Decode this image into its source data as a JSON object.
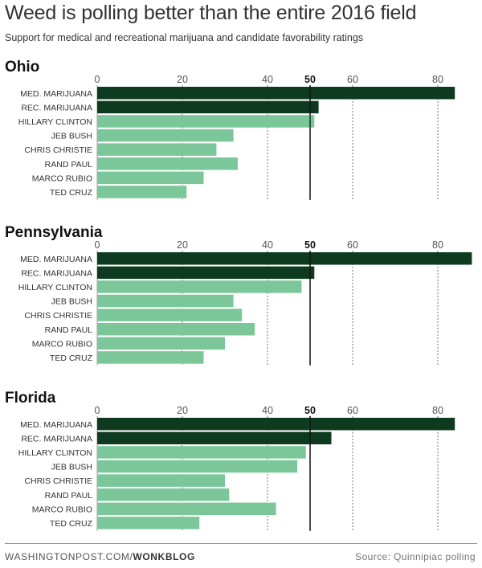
{
  "header": {
    "title": "Weed is polling better than the entire 2016 field",
    "subtitle": "Support for medical and recreational marijuana and candidate favorability ratings"
  },
  "footer": {
    "site": "WASHINGTONPOST.COM/",
    "section": "WONKBLOG",
    "source": "Source: Quinnipiac polling"
  },
  "colors": {
    "marijuana": "#0e3b1f",
    "candidate": "#7cc79a",
    "reference_line": "#111111"
  },
  "chart_data": [
    {
      "type": "bar",
      "orientation": "horizontal",
      "title": "Ohio",
      "xlim": [
        0,
        85
      ],
      "ticks": [
        "0",
        "20",
        "40",
        "50",
        "60",
        "80"
      ],
      "tick_values": [
        0,
        20,
        40,
        50,
        60,
        80
      ],
      "reference_value": 50,
      "categories": [
        "MED. MARIJUANA",
        "REC. MARIJUANA",
        "HILLARY CLINTON",
        "JEB BUSH",
        "CHRIS CHRISTIE",
        "RAND PAUL",
        "MARCO RUBIO",
        "TED CRUZ"
      ],
      "values": [
        84,
        52,
        51,
        32,
        28,
        33,
        25,
        21
      ],
      "groups": [
        "marijuana",
        "marijuana",
        "candidate",
        "candidate",
        "candidate",
        "candidate",
        "candidate",
        "candidate"
      ]
    },
    {
      "type": "bar",
      "orientation": "horizontal",
      "title": "Pennsylvania",
      "xlim": [
        0,
        85
      ],
      "ticks": [
        "0",
        "20",
        "40",
        "50",
        "60",
        "80"
      ],
      "tick_values": [
        0,
        20,
        40,
        50,
        60,
        80
      ],
      "reference_value": 50,
      "categories": [
        "MED. MARIJUANA",
        "REC. MARIJUANA",
        "HILLARY CLINTON",
        "JEB BUSH",
        "CHRIS CHRISTIE",
        "RAND PAUL",
        "MARCO RUBIO",
        "TED CRUZ"
      ],
      "values": [
        88,
        51,
        48,
        32,
        34,
        37,
        30,
        25
      ],
      "groups": [
        "marijuana",
        "marijuana",
        "candidate",
        "candidate",
        "candidate",
        "candidate",
        "candidate",
        "candidate"
      ]
    },
    {
      "type": "bar",
      "orientation": "horizontal",
      "title": "Florida",
      "xlim": [
        0,
        85
      ],
      "ticks": [
        "0",
        "20",
        "40",
        "50",
        "60",
        "80"
      ],
      "tick_values": [
        0,
        20,
        40,
        50,
        60,
        80
      ],
      "reference_value": 50,
      "categories": [
        "MED. MARIJUANA",
        "REC. MARIJUANA",
        "HILLARY CLINTON",
        "JEB BUSH",
        "CHRIS CHRISTIE",
        "RAND PAUL",
        "MARCO RUBIO",
        "TED CRUZ"
      ],
      "values": [
        84,
        55,
        49,
        47,
        30,
        31,
        42,
        24
      ],
      "groups": [
        "marijuana",
        "marijuana",
        "candidate",
        "candidate",
        "candidate",
        "candidate",
        "candidate",
        "candidate"
      ]
    }
  ]
}
